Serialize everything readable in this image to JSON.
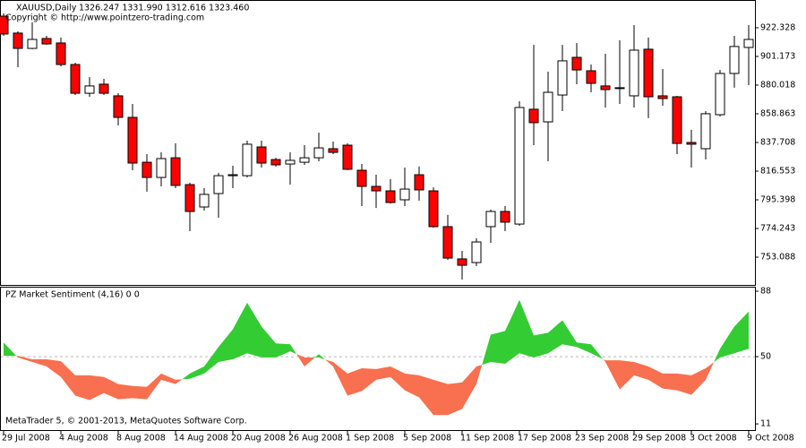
{
  "chart_data": [
    {
      "type": "candlestick",
      "title": "XAUUSD,Daily",
      "subtitle": "1326.247 1331.990 1312.616 1323.460",
      "annotation": "Copyright © http://www.pointzero-trading.com",
      "categories": [
        "29 Jul 2008",
        null,
        null,
        null,
        "4 Aug 2008",
        null,
        null,
        null,
        "8 Aug 2008",
        null,
        null,
        null,
        "14 Aug 2008",
        null,
        null,
        null,
        "20 Aug 2008",
        null,
        null,
        null,
        "26 Aug 2008",
        null,
        null,
        null,
        "1 Sep 2008",
        null,
        null,
        null,
        "5 Sep 2008",
        null,
        null,
        null,
        "11 Sep 2008",
        null,
        null,
        null,
        "17 Sep 2008",
        null,
        null,
        null,
        "23 Sep 2008",
        null,
        null,
        null,
        "29 Sep 2008",
        null,
        null,
        null,
        "3 Oct 2008",
        null,
        null,
        null,
        "9 Oct 2008"
      ],
      "open": [
        930.9,
        918.4,
        907.1,
        914.4,
        911.1,
        895.2,
        874.0,
        880.7,
        872.1,
        856.2,
        823.1,
        811.9,
        826.4,
        806.6,
        790.1,
        800.0,
        813.2,
        813.2,
        834.4,
        825.1,
        821.8,
        823.1,
        826.4,
        833.1,
        835.7,
        817.2,
        805.3,
        802.0,
        795.4,
        813.9,
        802.0,
        775.6,
        751.8,
        749.1,
        775.6,
        786.8,
        777.5,
        862.2,
        852.9,
        872.7,
        900.5,
        890.6,
        879.4,
        878.1,
        872.1,
        906.5,
        872.1,
        871.4,
        837.7,
        833.1,
        858.2,
        888.6,
        907.8
      ],
      "high": [
        932.9,
        919.7,
        926.3,
        916.4,
        915.1,
        896.5,
        885.9,
        884.6,
        874.0,
        866.1,
        829.1,
        830.4,
        837.0,
        808.0,
        804.0,
        815.2,
        820.5,
        839.0,
        839.0,
        826.4,
        830.4,
        835.7,
        845.0,
        838.4,
        837.0,
        821.8,
        813.9,
        810.6,
        819.2,
        819.9,
        804.6,
        784.2,
        757.7,
        767.0,
        788.1,
        790.8,
        868.1,
        909.7,
        889.9,
        909.7,
        911.1,
        895.2,
        903.1,
        913.1,
        924.3,
        915.1,
        891.9,
        872.1,
        847.0,
        860.8,
        891.2,
        916.4,
        924.3
      ],
      "low": [
        916.4,
        893.2,
        906.5,
        909.7,
        893.9,
        872.7,
        871.4,
        872.7,
        850.3,
        817.2,
        801.4,
        805.3,
        804.0,
        772.3,
        787.5,
        782.2,
        804.0,
        811.9,
        819.2,
        819.9,
        806.6,
        821.2,
        823.8,
        829.1,
        817.2,
        790.8,
        789.4,
        792.7,
        790.8,
        794.7,
        774.9,
        751.1,
        736.6,
        746.5,
        763.7,
        772.3,
        776.2,
        835.7,
        823.8,
        860.8,
        880.7,
        874.7,
        863.5,
        866.1,
        863.5,
        855.6,
        864.8,
        829.1,
        819.2,
        825.1,
        856.9,
        878.1,
        880.0
      ],
      "close": [
        917.7,
        907.1,
        913.7,
        910.4,
        895.2,
        874.0,
        879.4,
        874.0,
        856.2,
        822.5,
        811.9,
        825.8,
        806.0,
        786.8,
        799.4,
        813.2,
        813.9,
        836.4,
        822.5,
        821.2,
        824.5,
        826.4,
        833.7,
        830.4,
        817.9,
        805.3,
        802.0,
        793.4,
        803.3,
        802.7,
        775.6,
        752.4,
        747.1,
        764.3,
        786.8,
        778.9,
        863.5,
        852.3,
        874.7,
        897.9,
        891.2,
        881.3,
        876.7,
        877.8,
        905.8,
        871.4,
        870.1,
        837.0,
        836.4,
        858.9,
        888.6,
        908.5,
        913.7
      ],
      "up_color": "#ffffff",
      "down_color": "#ff0000",
      "ylim": [
        732.6,
        942.8
      ],
      "yticks": [
        922.328,
        901.173,
        880.018,
        858.863,
        837.708,
        816.553,
        795.398,
        774.243,
        753.088
      ]
    },
    {
      "type": "area",
      "title": "PZ Market Sentiment (4,16) 0 0",
      "annotation": "MetaTrader 5, © 2001-2013, MetaQuotes Software Corp.",
      "series": [
        {
          "values": [
            58.2,
            49.5,
            46.9,
            44.3,
            38.2,
            27.4,
            24.8,
            28.9,
            25.3,
            25.9,
            25.3,
            36.6,
            34.1,
            40.2,
            44.3,
            55.6,
            65.9,
            81.3,
            67.5,
            57.7,
            57.2,
            44.3,
            51.5,
            44.3,
            27.4,
            30.0,
            36.6,
            38.2,
            30.5,
            26.4,
            16.1,
            16.1,
            19.7,
            34.1,
            62.8,
            64.9,
            82.9,
            62.3,
            63.9,
            71.1,
            58.2,
            57.2,
            46.9,
            31.0,
            39.2,
            36.6,
            31.5,
            30.5,
            27.9,
            36.6,
            54.6,
            67.5,
            76.2
          ]
        },
        {
          "values": [
            50.5,
            50.5,
            48.5,
            48.5,
            47.4,
            39.2,
            39.2,
            38.2,
            34.1,
            33.0,
            32.5,
            40.2,
            36.6,
            37.2,
            40.2,
            46.9,
            48.5,
            52.0,
            49.5,
            49.5,
            53.1,
            49.5,
            49.5,
            46.9,
            40.2,
            43.3,
            42.8,
            44.3,
            40.2,
            39.2,
            36.6,
            34.1,
            35.1,
            44.3,
            46.9,
            45.9,
            52.0,
            49.5,
            52.0,
            57.2,
            55.6,
            52.0,
            47.9,
            47.9,
            46.9,
            44.3,
            40.2,
            40.2,
            39.2,
            43.3,
            49.5,
            52.0,
            54.6
          ]
        }
      ],
      "fill_above": "#33cc33",
      "fill_below": "#f8704f",
      "level": 50,
      "ylim": [
        7.4,
        90.6
      ],
      "yticks": [
        88,
        50,
        11
      ]
    }
  ]
}
